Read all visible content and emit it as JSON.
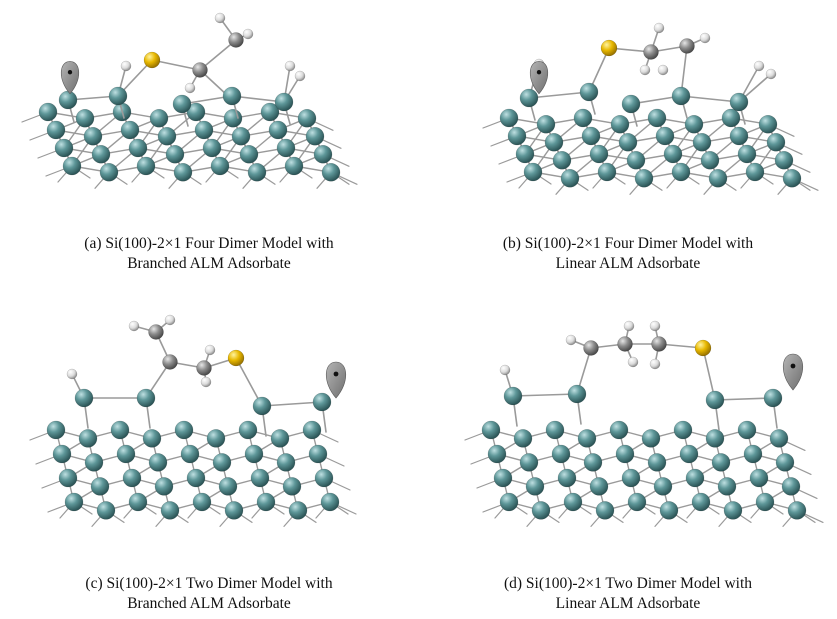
{
  "captions": [
    {
      "line1": "(a) Si(100)-2×1 Four Dimer Model with",
      "line2": "Branched ALM Adsorbate"
    },
    {
      "line1": "(b) Si(100)-2×1 Four Dimer Model with",
      "line2": "Linear ALM Adsorbate"
    },
    {
      "line1": "(c) Si(100)-2×1 Two Dimer Model with",
      "line2": "Branched ALM Adsorbate"
    },
    {
      "line1": "(d) Si(100)-2×1 Two Dimer Model with",
      "line2": "Linear ALM Adsorbate"
    }
  ],
  "colors": {
    "silicon": "#4f8a8c",
    "sulfur": "#e8b800",
    "carbon": "#8c8c8c",
    "hydrogen": "#e8e8e8",
    "lone_pair": "#8a8a8a",
    "bond": "#9a9a9a"
  },
  "atom_legend_names": [
    "silicon-atom",
    "sulfur-atom",
    "carbon-atom",
    "hydrogen-atom",
    "dangling-bond-lobe"
  ]
}
